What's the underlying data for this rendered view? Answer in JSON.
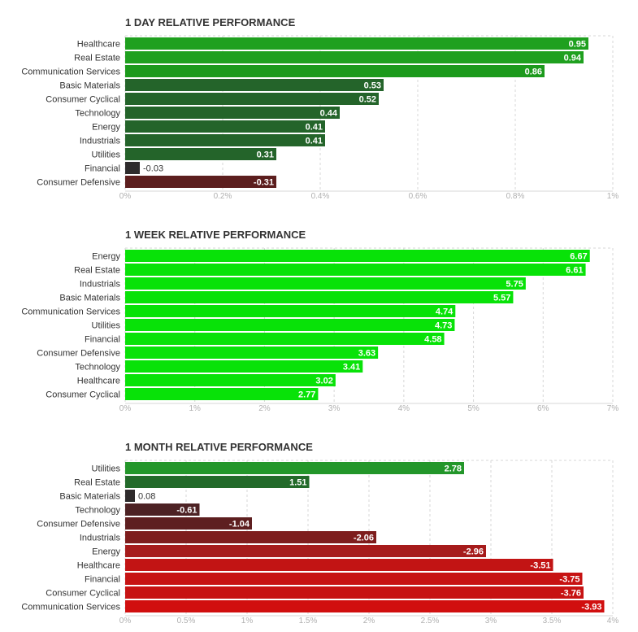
{
  "chart_data": [
    {
      "type": "bar",
      "orientation": "horizontal",
      "title": "1 DAY RELATIVE PERFORMANCE",
      "categories": [
        "Healthcare",
        "Real Estate",
        "Communication Services",
        "Basic Materials",
        "Consumer Cyclical",
        "Technology",
        "Energy",
        "Industrials",
        "Utilities",
        "Financial",
        "Consumer Defensive"
      ],
      "values": [
        0.95,
        0.94,
        0.86,
        0.53,
        0.52,
        0.44,
        0.41,
        0.41,
        0.31,
        -0.03,
        -0.31
      ],
      "value_labels": [
        "0.95",
        "0.94",
        "0.86",
        "0.53",
        "0.52",
        "0.44",
        "0.41",
        "0.41",
        "0.31",
        "-0.03",
        "-0.31"
      ],
      "bar_colors": [
        "#1fa01f",
        "#1fa01f",
        "#1c9a1c",
        "#24642a",
        "#24642a",
        "#24642a",
        "#24642a",
        "#24642a",
        "#24642a",
        "#2e2b2c",
        "#5c1e1e"
      ],
      "xlim": [
        0,
        1
      ],
      "ticks": [
        0,
        0.2,
        0.4,
        0.6,
        0.8,
        1
      ],
      "tick_labels": [
        "0%",
        "0.2%",
        "0.4%",
        "0.6%",
        "0.8%",
        "1%"
      ],
      "grid": true
    },
    {
      "type": "bar",
      "orientation": "horizontal",
      "title": "1 WEEK RELATIVE PERFORMANCE",
      "categories": [
        "Energy",
        "Real Estate",
        "Industrials",
        "Basic Materials",
        "Communication Services",
        "Utilities",
        "Financial",
        "Consumer Defensive",
        "Technology",
        "Healthcare",
        "Consumer Cyclical"
      ],
      "values": [
        6.67,
        6.61,
        5.75,
        5.57,
        4.74,
        4.73,
        4.58,
        3.63,
        3.41,
        3.02,
        2.77
      ],
      "value_labels": [
        "6.67",
        "6.61",
        "5.75",
        "5.57",
        "4.74",
        "4.73",
        "4.58",
        "3.63",
        "3.41",
        "3.02",
        "2.77"
      ],
      "bar_colors": [
        "#08e208",
        "#08e208",
        "#08e208",
        "#08e208",
        "#08e208",
        "#08e208",
        "#08e208",
        "#08e208",
        "#08e208",
        "#08e208",
        "#08e208"
      ],
      "xlim": [
        0,
        7
      ],
      "ticks": [
        0,
        1,
        2,
        3,
        4,
        5,
        6,
        7
      ],
      "tick_labels": [
        "0%",
        "1%",
        "2%",
        "3%",
        "4%",
        "5%",
        "6%",
        "7%"
      ],
      "grid": true
    },
    {
      "type": "bar",
      "orientation": "horizontal",
      "title": "1 MONTH RELATIVE PERFORMANCE",
      "categories": [
        "Utilities",
        "Real Estate",
        "Basic Materials",
        "Technology",
        "Consumer Defensive",
        "Industrials",
        "Energy",
        "Healthcare",
        "Financial",
        "Consumer Cyclical",
        "Communication Services"
      ],
      "values": [
        2.78,
        1.51,
        0.08,
        -0.61,
        -1.04,
        -2.06,
        -2.96,
        -3.51,
        -3.75,
        -3.76,
        -3.93
      ],
      "value_labels": [
        "2.78",
        "1.51",
        "0.08",
        "-0.61",
        "-1.04",
        "-2.06",
        "-2.96",
        "-3.51",
        "-3.75",
        "-3.76",
        "-3.93"
      ],
      "bar_colors": [
        "#23962a",
        "#236a2a",
        "#2e2b2c",
        "#4d2224",
        "#5e1f20",
        "#7e1d1d",
        "#a61b1b",
        "#c21414",
        "#c71313",
        "#c71313",
        "#d10f0f"
      ],
      "xlim": [
        0,
        4
      ],
      "ticks": [
        0,
        0.5,
        1,
        1.5,
        2,
        2.5,
        3,
        3.5,
        4
      ],
      "tick_labels": [
        "0%",
        "0.5%",
        "1%",
        "1.5%",
        "2%",
        "2.5%",
        "3%",
        "3.5%",
        "4%"
      ],
      "grid": true
    }
  ]
}
